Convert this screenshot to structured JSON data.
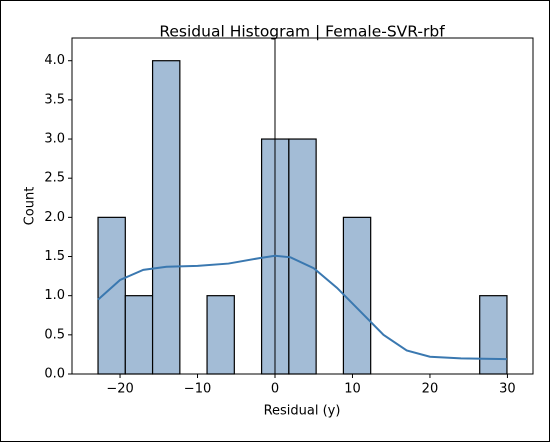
{
  "chart_data": {
    "type": "histogram",
    "title": "Residual Histogram | Female-SVR-rbf",
    "x_label": "Residual (y)",
    "y_label": "Count",
    "bins": [
      -22.84,
      -19.32,
      -15.8,
      -12.28,
      -8.77,
      -5.25,
      -1.73,
      1.79,
      5.31,
      8.83,
      12.35,
      15.87,
      19.39,
      22.9,
      26.42,
      29.94
    ],
    "counts": [
      2,
      1,
      4,
      0,
      1,
      0,
      3,
      3,
      0,
      2,
      0,
      0,
      0,
      0,
      1
    ],
    "color": "#a3bcd6",
    "edge_color": "#000000",
    "kde": {
      "color": "#3a78b0",
      "x": [
        -22.84,
        -20,
        -17,
        -14,
        -10,
        -6,
        -2,
        0,
        2,
        5,
        8,
        11,
        14,
        17,
        20,
        24,
        29.94
      ],
      "values": [
        0.95,
        1.2,
        1.33,
        1.37,
        1.38,
        1.41,
        1.48,
        1.51,
        1.49,
        1.35,
        1.1,
        0.8,
        0.5,
        0.3,
        0.22,
        0.2,
        0.19
      ]
    },
    "vline": 0,
    "xlim": [
      -26.2,
      33.3
    ],
    "ylim": [
      0,
      4.29
    ],
    "xticks": [
      {
        "value": -20,
        "label": "−20"
      },
      {
        "value": -10,
        "label": "−10"
      },
      0,
      10,
      20,
      30
    ],
    "yticks": [
      {
        "value": 0,
        "label": "0.0"
      },
      0.5,
      {
        "value": 1,
        "label": "1.0"
      },
      1.5,
      {
        "value": 2,
        "label": "2.0"
      },
      2.5,
      {
        "value": 3,
        "label": "3.0"
      },
      3.5,
      {
        "value": 4,
        "label": "4.0"
      }
    ]
  }
}
